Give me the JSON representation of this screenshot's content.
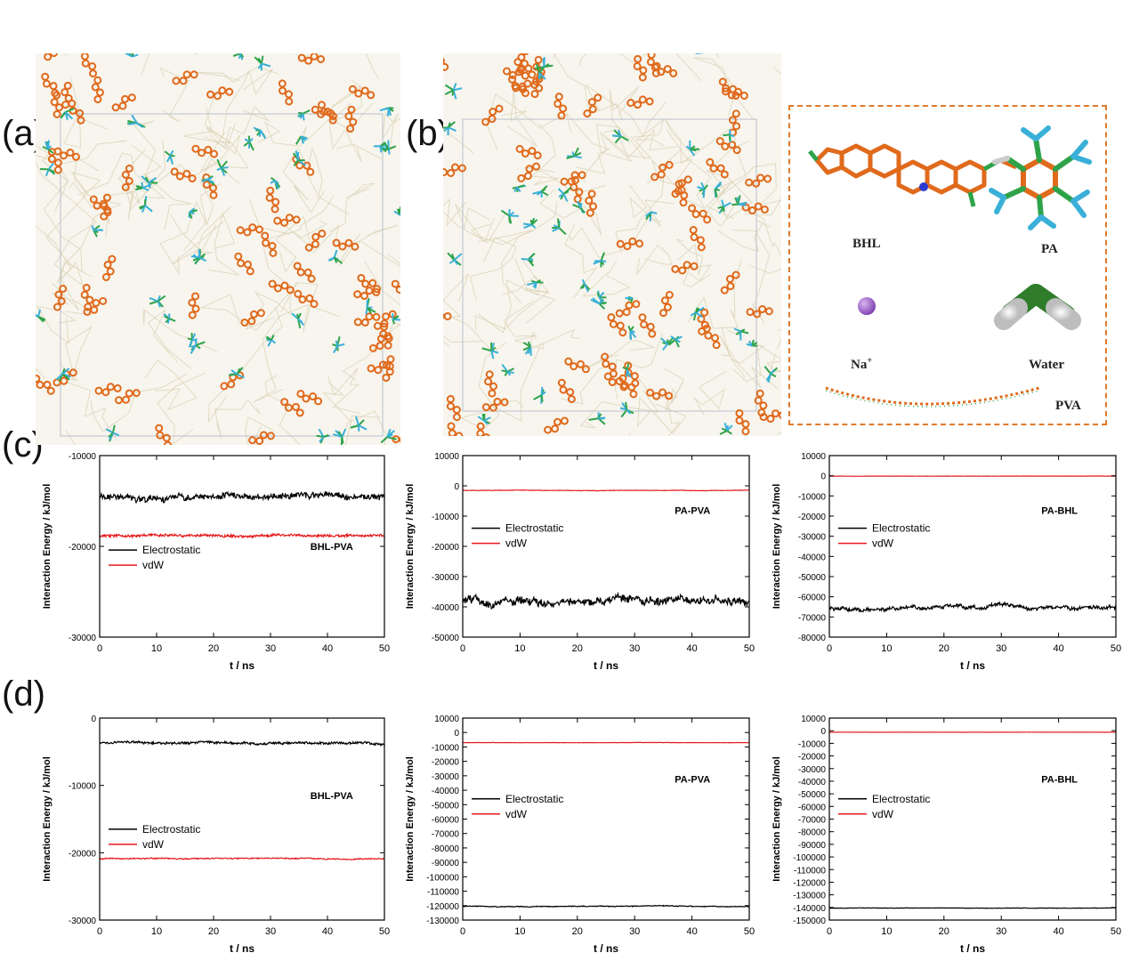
{
  "panel_labels": [
    "(a)",
    "(b)",
    "(c)",
    "(d)"
  ],
  "molecule_legend": {
    "items": [
      "BHL",
      "PA",
      "Na+",
      "Water",
      "PVA"
    ],
    "na_label": "Na",
    "na_sup": "+"
  },
  "colors": {
    "electrostatic": "#000000",
    "vdw": "#e41a1c",
    "bhl_carbon": "#e06a1c",
    "pa_carbon": "#2ea34a",
    "pa_fluor": "#3ab0d8",
    "nitrogen": "#2b3bd0",
    "sodium": "#9b59c8",
    "box_border": "#e07a2c"
  },
  "chart_data": [
    {
      "id": "c1",
      "type": "line",
      "pair": "BHL-PVA",
      "xlabel": "t / ns",
      "ylabel": "Interaction Energy / kJ/mol",
      "xlim": [
        0,
        50
      ],
      "ylim": [
        -30000,
        -10000
      ],
      "xticks": [
        0,
        10,
        20,
        30,
        40,
        50
      ],
      "yticks": [
        -10000,
        -20000,
        -30000
      ],
      "series": [
        {
          "name": "Electrostatic",
          "mean": -14500,
          "noise": 600,
          "wander": 400
        },
        {
          "name": "vdW",
          "mean": -18800,
          "noise": 250,
          "wander": 150
        }
      ]
    },
    {
      "id": "c2",
      "type": "line",
      "pair": "PA-PVA",
      "xlabel": "t / ns",
      "ylabel": "Interaction Energy / kJ/mol",
      "xlim": [
        0,
        50
      ],
      "ylim": [
        -50000,
        10000
      ],
      "xticks": [
        0,
        10,
        20,
        30,
        40,
        50
      ],
      "yticks": [
        10000,
        0,
        -10000,
        -20000,
        -30000,
        -40000,
        -50000
      ],
      "series": [
        {
          "name": "Electrostatic",
          "mean": -38000,
          "noise": 2200,
          "wander": 2500
        },
        {
          "name": "vdW",
          "mean": -1500,
          "noise": 150,
          "wander": 100
        }
      ]
    },
    {
      "id": "c3",
      "type": "line",
      "pair": "PA-BHL",
      "xlabel": "t / ns",
      "ylabel": "Interaction Energy / kJ/mol",
      "xlim": [
        0,
        50
      ],
      "ylim": [
        -80000,
        10000
      ],
      "xticks": [
        0,
        10,
        20,
        30,
        40,
        50
      ],
      "yticks": [
        10000,
        0,
        -10000,
        -20000,
        -30000,
        -40000,
        -50000,
        -60000,
        -70000,
        -80000
      ],
      "series": [
        {
          "name": "Electrostatic",
          "mean": -65500,
          "noise": 1400,
          "wander": 2000
        },
        {
          "name": "vdW",
          "mean": -200,
          "noise": 100,
          "wander": 60
        }
      ]
    },
    {
      "id": "d1",
      "type": "line",
      "pair": "BHL-PVA",
      "xlabel": "t / ns",
      "ylabel": "Interaction Energy / kJ/mol",
      "xlim": [
        0,
        50
      ],
      "ylim": [
        -30000,
        0
      ],
      "xticks": [
        0,
        10,
        20,
        30,
        40,
        50
      ],
      "yticks": [
        0,
        -10000,
        -20000,
        -30000
      ],
      "series": [
        {
          "name": "Electrostatic",
          "mean": -3700,
          "noise": 300,
          "wander": 250
        },
        {
          "name": "vdW",
          "mean": -20900,
          "noise": 150,
          "wander": 100
        }
      ]
    },
    {
      "id": "d2",
      "type": "line",
      "pair": "PA-PVA",
      "xlabel": "t / ns",
      "ylabel": "Interaction Energy / kJ/mol",
      "xlim": [
        0,
        50
      ],
      "ylim": [
        -130000,
        10000
      ],
      "xticks": [
        0,
        10,
        20,
        30,
        40,
        50
      ],
      "yticks": [
        10000,
        0,
        -10000,
        -20000,
        -30000,
        -40000,
        -50000,
        -60000,
        -70000,
        -80000,
        -90000,
        -100000,
        -110000,
        -120000,
        -130000
      ],
      "series": [
        {
          "name": "Electrostatic",
          "mean": -120500,
          "noise": 500,
          "wander": 400
        },
        {
          "name": "vdW",
          "mean": -7000,
          "noise": 150,
          "wander": 80
        }
      ]
    },
    {
      "id": "d3",
      "type": "line",
      "pair": "PA-BHL",
      "xlabel": "t / ns",
      "ylabel": "Interaction Energy / kJ/mol",
      "xlim": [
        0,
        50
      ],
      "ylim": [
        -150000,
        10000
      ],
      "xticks": [
        0,
        10,
        20,
        30,
        40,
        50
      ],
      "yticks": [
        10000,
        0,
        -10000,
        -20000,
        -30000,
        -40000,
        -50000,
        -60000,
        -70000,
        -80000,
        -90000,
        -100000,
        -110000,
        -120000,
        -130000,
        -140000,
        -150000
      ],
      "series": [
        {
          "name": "Electrostatic",
          "mean": -140500,
          "noise": 300,
          "wander": 200
        },
        {
          "name": "vdW",
          "mean": -1200,
          "noise": 100,
          "wander": 50
        }
      ]
    }
  ]
}
